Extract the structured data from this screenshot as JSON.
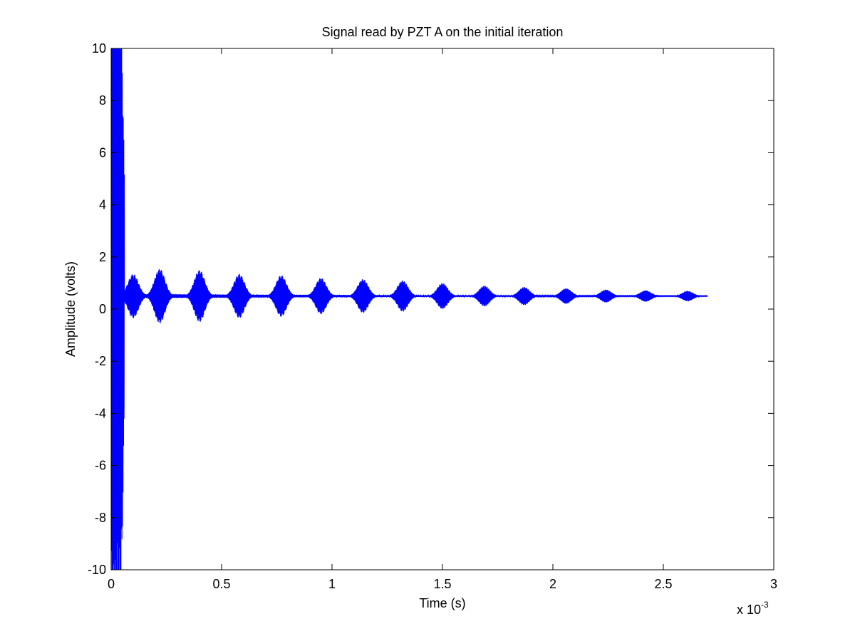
{
  "chart_data": {
    "type": "line",
    "title": "Signal read by PZT A on the initial iteration",
    "xlabel": "Time (s)",
    "ylabel": "Amplitude (volts)",
    "x_scale_multiplier": "x 10",
    "x_scale_exponent": "-3",
    "xlim": [
      0,
      3
    ],
    "ylim": [
      -10,
      10
    ],
    "x_ticks": [
      0,
      0.5,
      1,
      1.5,
      2,
      2.5,
      3
    ],
    "x_tick_labels": [
      "0",
      "0.5",
      "1",
      "1.5",
      "2",
      "2.5",
      "3"
    ],
    "y_ticks": [
      -10,
      -8,
      -6,
      -4,
      -2,
      0,
      2,
      4,
      6,
      8,
      10
    ],
    "y_tick_labels": [
      "-10",
      "-8",
      "-6",
      "-4",
      "-2",
      "0",
      "2",
      "4",
      "6",
      "8",
      "10"
    ],
    "grid": false,
    "line_color": "#0000ff",
    "series": [
      {
        "signal_end_x": 2.7,
        "baseline": 0.5,
        "initial_burst": {
          "x_start": 0.0,
          "x_end": 0.06,
          "amplitude": 12
        },
        "packets": [
          {
            "center": 0.1,
            "amplitude": 0.85
          },
          {
            "center": 0.22,
            "amplitude": 1.05
          },
          {
            "center": 0.4,
            "amplitude": 1.0
          },
          {
            "center": 0.58,
            "amplitude": 0.85
          },
          {
            "center": 0.77,
            "amplitude": 0.8
          },
          {
            "center": 0.95,
            "amplitude": 0.7
          },
          {
            "center": 1.14,
            "amplitude": 0.65
          },
          {
            "center": 1.32,
            "amplitude": 0.6
          },
          {
            "center": 1.5,
            "amplitude": 0.5
          },
          {
            "center": 1.69,
            "amplitude": 0.4
          },
          {
            "center": 1.87,
            "amplitude": 0.35
          },
          {
            "center": 2.06,
            "amplitude": 0.3
          },
          {
            "center": 2.24,
            "amplitude": 0.25
          },
          {
            "center": 2.42,
            "amplitude": 0.22
          },
          {
            "center": 2.61,
            "amplitude": 0.2
          }
        ]
      }
    ]
  }
}
